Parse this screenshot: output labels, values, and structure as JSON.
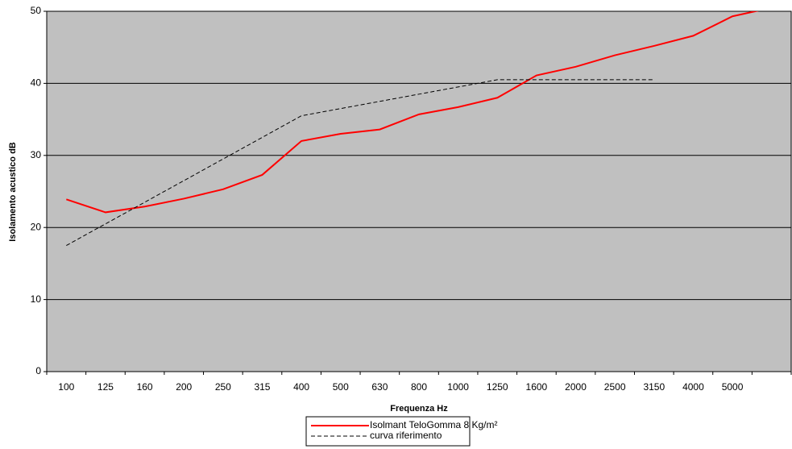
{
  "chart_data": {
    "type": "line",
    "xlabel": "Frequenza Hz",
    "ylabel": "Isolamento acustico dB",
    "categories": [
      "100",
      "125",
      "160",
      "200",
      "250",
      "315",
      "400",
      "500",
      "630",
      "800",
      "1000",
      "1250",
      "1600",
      "2000",
      "2500",
      "3150",
      "4000",
      "5000",
      null
    ],
    "series": [
      {
        "name": "Isolmant TeloGomma 8 Kg/m²",
        "color": "#ff0000",
        "dash": false,
        "values": [
          23.9,
          22.1,
          22.9,
          24.0,
          25.3,
          27.3,
          32.0,
          33.0,
          33.6,
          35.7,
          36.7,
          38.0,
          41.1,
          42.3,
          43.9,
          45.2,
          46.6,
          49.3,
          50.5
        ]
      },
      {
        "name": "curva riferimento",
        "color": "#000000",
        "dash": true,
        "values": [
          17.5,
          20.5,
          23.5,
          26.5,
          29.5,
          32.5,
          35.5,
          36.5,
          37.5,
          38.5,
          39.5,
          40.5,
          40.5,
          40.5,
          40.5,
          40.5,
          null,
          null,
          null
        ]
      }
    ],
    "ylim": [
      0,
      50
    ],
    "yticks": [
      0,
      10,
      20,
      30,
      40,
      50
    ],
    "grid": true
  }
}
